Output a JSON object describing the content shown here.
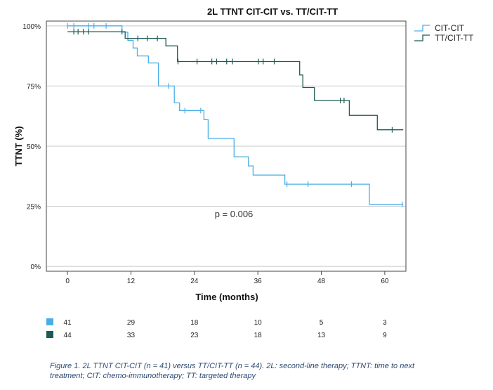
{
  "chart_data": {
    "type": "line",
    "subtype": "kaplan-meier",
    "title": "2L TTNT CIT-CIT vs. TT/CIT-TT",
    "xlabel": "Time (months)",
    "ylabel": "TTNT (%)",
    "xlim": [
      -4,
      64
    ],
    "ylim": [
      -2,
      102
    ],
    "x_ticks": [
      0,
      12,
      24,
      36,
      48,
      60
    ],
    "x_tick_labels": [
      "0",
      "12",
      "24",
      "36",
      "48",
      "60"
    ],
    "y_ticks": [
      0,
      25,
      50,
      75,
      100
    ],
    "y_tick_labels": [
      "0%",
      "25%",
      "50%",
      "75%",
      "100%"
    ],
    "grid": "horizontal",
    "legend_position": "top-right",
    "annotation": "p = 0.006",
    "colors": {
      "CIT-CIT": "#4aaee6",
      "TT/CIT-TT": "#1d5c55"
    },
    "series": [
      {
        "name": "CIT-CIT",
        "steps": [
          [
            0,
            100
          ],
          [
            10.3,
            97.4
          ],
          [
            11.4,
            94
          ],
          [
            12.4,
            90.8
          ],
          [
            13.2,
            87.5
          ],
          [
            15.3,
            84.6
          ],
          [
            17.2,
            75
          ],
          [
            20.2,
            68
          ],
          [
            21.2,
            64.8
          ],
          [
            25.8,
            61
          ],
          [
            26.6,
            53.2
          ],
          [
            31.5,
            45.6
          ],
          [
            34.2,
            41.8
          ],
          [
            35.1,
            38
          ],
          [
            41.1,
            34.2
          ],
          [
            57.1,
            25.8
          ],
          [
            63.5,
            25.8
          ]
        ],
        "censored": [
          [
            0,
            100
          ],
          [
            1.2,
            100
          ],
          [
            4,
            100
          ],
          [
            5,
            100
          ],
          [
            7.3,
            100
          ],
          [
            19.1,
            75
          ],
          [
            22.2,
            64.8
          ],
          [
            25.2,
            64.8
          ],
          [
            41.5,
            34.2
          ],
          [
            45.5,
            34.2
          ],
          [
            53.7,
            34.2
          ],
          [
            63.3,
            25.8
          ]
        ]
      },
      {
        "name": "TT/CIT-TT",
        "steps": [
          [
            0,
            97.6
          ],
          [
            10.3,
            97.6
          ],
          [
            10.9,
            94.8
          ],
          [
            18.6,
            91.7
          ],
          [
            20.8,
            85.2
          ],
          [
            43.9,
            79.6
          ],
          [
            44.5,
            74.4
          ],
          [
            46.7,
            69
          ],
          [
            53.3,
            62.8
          ],
          [
            58.6,
            56.8
          ],
          [
            63.5,
            56.8
          ]
        ],
        "censored": [
          [
            1.2,
            97.6
          ],
          [
            2,
            97.6
          ],
          [
            3,
            97.6
          ],
          [
            4,
            97.6
          ],
          [
            10.3,
            97.6
          ],
          [
            13.3,
            94.8
          ],
          [
            15.1,
            94.8
          ],
          [
            17,
            94.8
          ],
          [
            20.9,
            85.2
          ],
          [
            24.5,
            85.2
          ],
          [
            27.3,
            85.2
          ],
          [
            28.2,
            85.2
          ],
          [
            30.1,
            85.2
          ],
          [
            31.2,
            85.2
          ],
          [
            36.1,
            85.2
          ],
          [
            37,
            85.2
          ],
          [
            39.1,
            85.2
          ],
          [
            51.6,
            69
          ],
          [
            52.3,
            69
          ],
          [
            61.4,
            56.8
          ]
        ]
      }
    ],
    "risk_table": {
      "times": [
        0,
        12,
        24,
        36,
        48,
        60
      ],
      "rows": [
        {
          "color": "#4aaee6",
          "label": "CIT-CIT",
          "counts": [
            "41",
            "29",
            "18",
            "10",
            "5",
            "3"
          ]
        },
        {
          "color": "#1d5c55",
          "label": "TT/CIT-TT",
          "counts": [
            "44",
            "33",
            "23",
            "18",
            "13",
            "9"
          ]
        }
      ]
    }
  },
  "caption": "Figure 1. 2L TTNT CIT-CIT (n = 41) versus TT/CIT-TT (n = 44). 2L: second-line therapy; TTNT: time to next treatment; CIT: chemo-immunotherapy; TT: targeted therapy"
}
